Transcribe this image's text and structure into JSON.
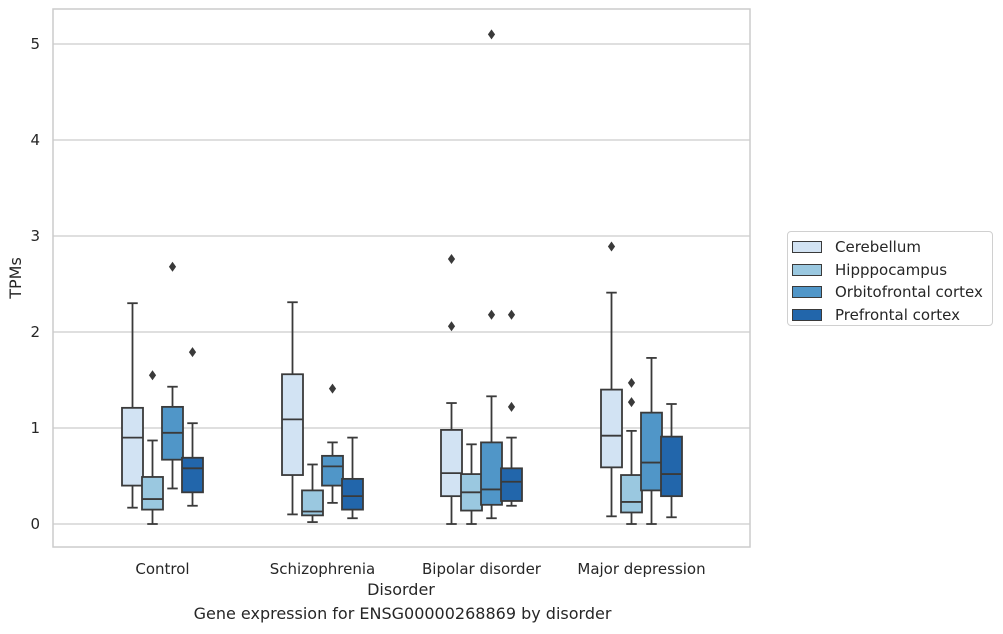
{
  "chart_data": {
    "type": "boxplot",
    "title": "Gene expression for ENSG00000268869 by disorder",
    "xlabel": "Disorder",
    "ylabel": "TPMs",
    "ylim": [
      -0.25,
      5.37
    ],
    "yticks": [
      0,
      1,
      2,
      3,
      4,
      5
    ],
    "grid": true,
    "legend_position": "right",
    "categories": [
      "Control",
      "Schizophrenia",
      "Bipolar disorder",
      "Major depression"
    ],
    "series": [
      {
        "name": "Cerebellum",
        "color": "#d2e3f3",
        "boxes": [
          {
            "whislo": 0.17,
            "q1": 0.4,
            "med": 0.9,
            "q3": 1.21,
            "whishi": 2.3,
            "fliers": []
          },
          {
            "whislo": 0.1,
            "q1": 0.51,
            "med": 1.09,
            "q3": 1.56,
            "whishi": 2.31,
            "fliers": []
          },
          {
            "whislo": 0.0,
            "q1": 0.29,
            "med": 0.53,
            "q3": 0.98,
            "whishi": 1.26,
            "fliers": [
              2.06,
              2.76
            ]
          },
          {
            "whislo": 0.08,
            "q1": 0.59,
            "med": 0.92,
            "q3": 1.4,
            "whishi": 2.41,
            "fliers": [
              2.89
            ]
          }
        ]
      },
      {
        "name": "Hipppocampus",
        "color": "#9ac8e0",
        "boxes": [
          {
            "whislo": 0.0,
            "q1": 0.15,
            "med": 0.26,
            "q3": 0.49,
            "whishi": 0.87,
            "fliers": [
              1.55
            ]
          },
          {
            "whislo": 0.02,
            "q1": 0.09,
            "med": 0.13,
            "q3": 0.35,
            "whishi": 0.62,
            "fliers": []
          },
          {
            "whislo": 0.0,
            "q1": 0.14,
            "med": 0.33,
            "q3": 0.52,
            "whishi": 0.83,
            "fliers": []
          },
          {
            "whislo": 0.0,
            "q1": 0.12,
            "med": 0.23,
            "q3": 0.51,
            "whishi": 0.97,
            "fliers": [
              1.27,
              1.47
            ]
          }
        ]
      },
      {
        "name": "Orbitofrontal cortex",
        "color": "#5096c8",
        "boxes": [
          {
            "whislo": 0.37,
            "q1": 0.67,
            "med": 0.95,
            "q3": 1.22,
            "whishi": 1.43,
            "fliers": [
              2.68
            ]
          },
          {
            "whislo": 0.22,
            "q1": 0.4,
            "med": 0.6,
            "q3": 0.71,
            "whishi": 0.85,
            "fliers": [
              1.41
            ]
          },
          {
            "whislo": 0.06,
            "q1": 0.2,
            "med": 0.36,
            "q3": 0.85,
            "whishi": 1.33,
            "fliers": [
              2.18,
              5.1
            ]
          },
          {
            "whislo": 0.0,
            "q1": 0.35,
            "med": 0.64,
            "q3": 1.16,
            "whishi": 1.73,
            "fliers": []
          }
        ]
      },
      {
        "name": "Prefrontal cortex",
        "color": "#2266ab",
        "boxes": [
          {
            "whislo": 0.19,
            "q1": 0.33,
            "med": 0.58,
            "q3": 0.69,
            "whishi": 1.05,
            "fliers": [
              1.79
            ]
          },
          {
            "whislo": 0.06,
            "q1": 0.15,
            "med": 0.29,
            "q3": 0.47,
            "whishi": 0.9,
            "fliers": []
          },
          {
            "whislo": 0.19,
            "q1": 0.24,
            "med": 0.44,
            "q3": 0.58,
            "whishi": 0.9,
            "fliers": [
              1.22,
              2.18
            ]
          },
          {
            "whislo": 0.07,
            "q1": 0.29,
            "med": 0.52,
            "q3": 0.91,
            "whishi": 1.25,
            "fliers": []
          }
        ]
      }
    ]
  }
}
